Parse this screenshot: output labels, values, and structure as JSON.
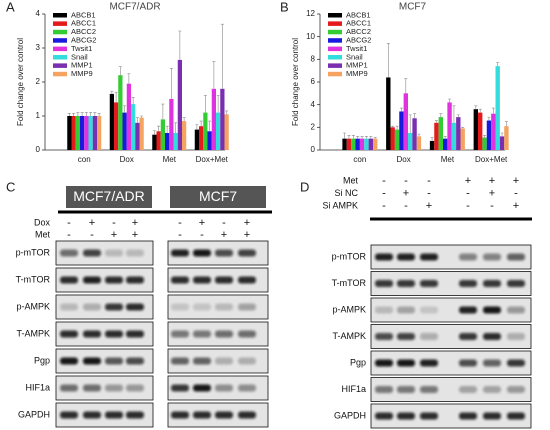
{
  "chart_data": [
    {
      "type": "bar",
      "panel": "A",
      "title": "MCF7/ADR",
      "ylabel": "Fold change over control",
      "categories": [
        "con",
        "Dox",
        "Met",
        "Dox+Met"
      ],
      "ylim": [
        0,
        4
      ],
      "yticks": [
        0,
        1,
        2,
        3,
        4
      ],
      "legend": "top-left",
      "series": [
        {
          "name": "ABCB1",
          "color": "#000000",
          "values": [
            1.0,
            1.65,
            0.45,
            0.6
          ],
          "errors": [
            0.08,
            0.08,
            0.12,
            0.15
          ]
        },
        {
          "name": "ABCC1",
          "color": "#e41a1c",
          "values": [
            1.0,
            1.4,
            0.55,
            0.7
          ],
          "errors": [
            0.08,
            0.3,
            0.15,
            0.15
          ]
        },
        {
          "name": "ABCC2",
          "color": "#33cc33",
          "values": [
            1.0,
            2.2,
            0.9,
            1.1
          ],
          "errors": [
            0.1,
            0.25,
            0.45,
            0.5
          ]
        },
        {
          "name": "ABCG2",
          "color": "#1a1adf",
          "values": [
            1.0,
            1.1,
            0.5,
            0.55
          ],
          "errors": [
            0.1,
            0.2,
            0.2,
            0.3
          ]
        },
        {
          "name": "Twsit1",
          "color": "#e033e0",
          "values": [
            1.0,
            1.95,
            1.5,
            1.8
          ],
          "errors": [
            0.1,
            0.3,
            0.9,
            0.8
          ]
        },
        {
          "name": "Snail",
          "color": "#33dddd",
          "values": [
            1.0,
            1.35,
            0.5,
            1.1
          ],
          "errors": [
            0.1,
            0.2,
            0.3,
            0.5
          ]
        },
        {
          "name": "MMP1",
          "color": "#7a2fb0",
          "values": [
            1.0,
            0.8,
            2.65,
            1.8
          ],
          "errors": [
            0.1,
            0.15,
            0.85,
            1.9
          ]
        },
        {
          "name": "MMP9",
          "color": "#f4a460",
          "values": [
            1.0,
            0.95,
            0.85,
            1.05
          ],
          "errors": [
            0.08,
            0.05,
            0.1,
            0.1
          ]
        }
      ]
    },
    {
      "type": "bar",
      "panel": "B",
      "title": "MCF7",
      "ylabel": "Fold change over control",
      "categories": [
        "con",
        "Dox",
        "Met",
        "Dox+Met"
      ],
      "ylim": [
        0,
        12
      ],
      "yticks": [
        0,
        2,
        4,
        6,
        8,
        10,
        12
      ],
      "legend": "top-left",
      "series": [
        {
          "name": "ABCB1",
          "color": "#000000",
          "values": [
            1.0,
            6.4,
            0.8,
            3.6
          ],
          "errors": [
            0.5,
            3.0,
            0.3,
            0.3
          ]
        },
        {
          "name": "ABCC1",
          "color": "#e41a1c",
          "values": [
            1.0,
            2.0,
            2.4,
            3.3
          ],
          "errors": [
            0.3,
            0.1,
            0.2,
            0.3
          ]
        },
        {
          "name": "ABCC2",
          "color": "#33cc33",
          "values": [
            1.0,
            1.8,
            2.9,
            1.1
          ],
          "errors": [
            0.3,
            0.3,
            0.3,
            0.2
          ]
        },
        {
          "name": "ABCG2",
          "color": "#1a1adf",
          "values": [
            1.0,
            3.4,
            1.0,
            2.6
          ],
          "errors": [
            0.2,
            0.3,
            0.2,
            0.3
          ]
        },
        {
          "name": "Twsit1",
          "color": "#e033e0",
          "values": [
            1.0,
            5.0,
            4.2,
            3.2
          ],
          "errors": [
            0.2,
            1.3,
            0.3,
            0.5
          ]
        },
        {
          "name": "Snail",
          "color": "#33dddd",
          "values": [
            1.0,
            1.5,
            2.4,
            7.4
          ],
          "errors": [
            0.2,
            1.6,
            1.5,
            0.3
          ]
        },
        {
          "name": "MMP1",
          "color": "#7a2fb0",
          "values": [
            1.0,
            2.8,
            2.9,
            1.2
          ],
          "errors": [
            0.2,
            0.4,
            0.2,
            0.3
          ]
        },
        {
          "name": "MMP9",
          "color": "#f4a460",
          "values": [
            1.0,
            1.2,
            1.9,
            2.1
          ],
          "errors": [
            0.1,
            0.2,
            0.1,
            0.4
          ]
        }
      ]
    }
  ],
  "blot_c": {
    "panel": "C",
    "groups": [
      "MCF7/ADR",
      "MCF7"
    ],
    "treatments": [
      {
        "name": "Dox",
        "marks": [
          "-",
          "+",
          "-",
          "+"
        ]
      },
      {
        "name": "Met",
        "marks": [
          "-",
          "-",
          "+",
          "+"
        ]
      }
    ],
    "proteins": [
      "p-mTOR",
      "T-mTOR",
      "p-AMPK",
      "T-AMPK",
      "Pgp",
      "HIF1a",
      "GAPDH"
    ]
  },
  "blot_d": {
    "panel": "D",
    "treatments": [
      {
        "name": "Met",
        "marks": [
          "-",
          "-",
          "-",
          "+",
          "+",
          "+"
        ]
      },
      {
        "name": "Si NC",
        "marks": [
          "-",
          "+",
          "-",
          "-",
          "+",
          "-"
        ]
      },
      {
        "name": "Si AMPK",
        "marks": [
          "-",
          "-",
          "+",
          "-",
          "-",
          "+"
        ]
      }
    ],
    "proteins": [
      "p-mTOR",
      "T-mTOR",
      "p-AMPK",
      "T-AMPK",
      "Pgp",
      "HIF1a",
      "GAPDH"
    ]
  }
}
